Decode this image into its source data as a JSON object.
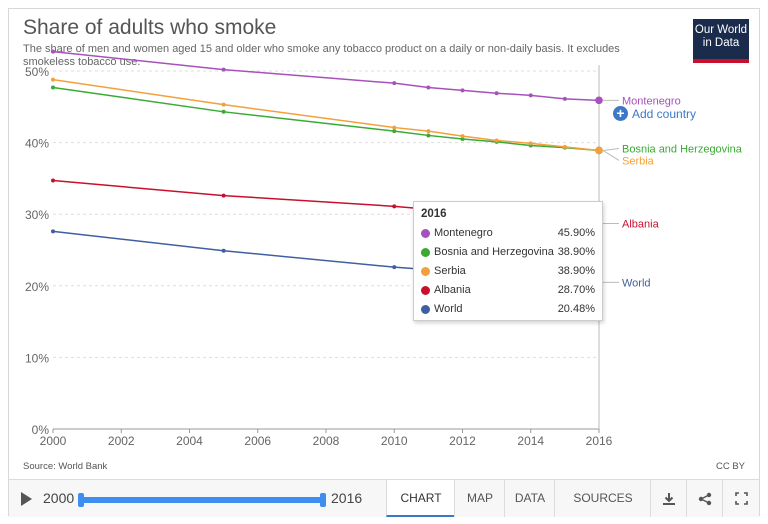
{
  "header": {
    "title": "Share of adults who smoke",
    "subtitle": "The share of men and women aged 15 and older who smoke any tobacco product on a daily or non-daily basis. It excludes smokeless tobacco use.",
    "logo_line1": "Our World",
    "logo_line2": "in Data"
  },
  "add_country_label": "Add country",
  "chart_data": {
    "type": "line",
    "title": "Share of adults who smoke",
    "xlabel": "",
    "ylabel": "",
    "xlim": [
      2000,
      2016
    ],
    "ylim": [
      0,
      50
    ],
    "y_unit": "%",
    "x_ticks": [
      2000,
      2002,
      2004,
      2006,
      2008,
      2010,
      2012,
      2014,
      2016
    ],
    "y_ticks": [
      0,
      10,
      20,
      30,
      40,
      50
    ],
    "y_tick_labels": [
      "0%",
      "10%",
      "20%",
      "30%",
      "40%",
      "50%"
    ],
    "grid": "horizontal dashed",
    "legend": "line-end labels right",
    "series": [
      {
        "name": "Montenegro",
        "color": "#a652ba",
        "x": [
          2000,
          2005,
          2010,
          2011,
          2012,
          2013,
          2014,
          2015,
          2016
        ],
        "values": [
          52.7,
          50.2,
          48.3,
          47.7,
          47.3,
          46.9,
          46.6,
          46.1,
          45.9
        ]
      },
      {
        "name": "Bosnia and Herzegovina",
        "color": "#3aaa35",
        "x": [
          2000,
          2005,
          2010,
          2011,
          2012,
          2013,
          2014,
          2015,
          2016
        ],
        "values": [
          47.7,
          44.3,
          41.6,
          41.0,
          40.5,
          40.1,
          39.6,
          39.3,
          38.9
        ]
      },
      {
        "name": "Serbia",
        "color": "#f2a03c",
        "x": [
          2000,
          2005,
          2010,
          2011,
          2012,
          2013,
          2014,
          2015,
          2016
        ],
        "values": [
          48.8,
          45.3,
          42.1,
          41.6,
          40.9,
          40.3,
          39.9,
          39.4,
          38.9
        ]
      },
      {
        "name": "Albania",
        "color": "#c8102e",
        "x": [
          2000,
          2005,
          2010,
          2016
        ],
        "values": [
          34.7,
          32.6,
          31.1,
          28.7
        ]
      },
      {
        "name": "World",
        "color": "#3e5fa0",
        "x": [
          2000,
          2005,
          2010,
          2016
        ],
        "values": [
          27.6,
          24.9,
          22.6,
          20.48
        ]
      }
    ],
    "tooltip": {
      "year": "2016",
      "rows": [
        {
          "name": "Montenegro",
          "value": "45.90%",
          "color": "#a652ba"
        },
        {
          "name": "Bosnia and Herzegovina",
          "value": "38.90%",
          "color": "#3aaa35"
        },
        {
          "name": "Serbia",
          "value": "38.90%",
          "color": "#f2a03c"
        },
        {
          "name": "Albania",
          "value": "28.70%",
          "color": "#c8102e"
        },
        {
          "name": "World",
          "value": "20.48%",
          "color": "#3e5fa0"
        }
      ]
    }
  },
  "source_text": "Source: World Bank",
  "license_text": "CC BY",
  "timeline": {
    "start_year": "2000",
    "end_year": "2016"
  },
  "tabs": [
    {
      "label": "CHART",
      "active": true
    },
    {
      "label": "MAP",
      "active": false
    },
    {
      "label": "DATA",
      "active": false
    },
    {
      "label": "SOURCES",
      "active": false
    }
  ],
  "icons": {
    "download": "download-icon",
    "share": "share-icon",
    "fullscreen": "fullscreen-icon",
    "play": "play-icon",
    "add": "plus-circle-icon"
  },
  "colors": {
    "accent": "#3c78c8",
    "slider": "#3d8ef0",
    "logo_bg": "#1a2b4c",
    "logo_bar": "#c8102e"
  }
}
